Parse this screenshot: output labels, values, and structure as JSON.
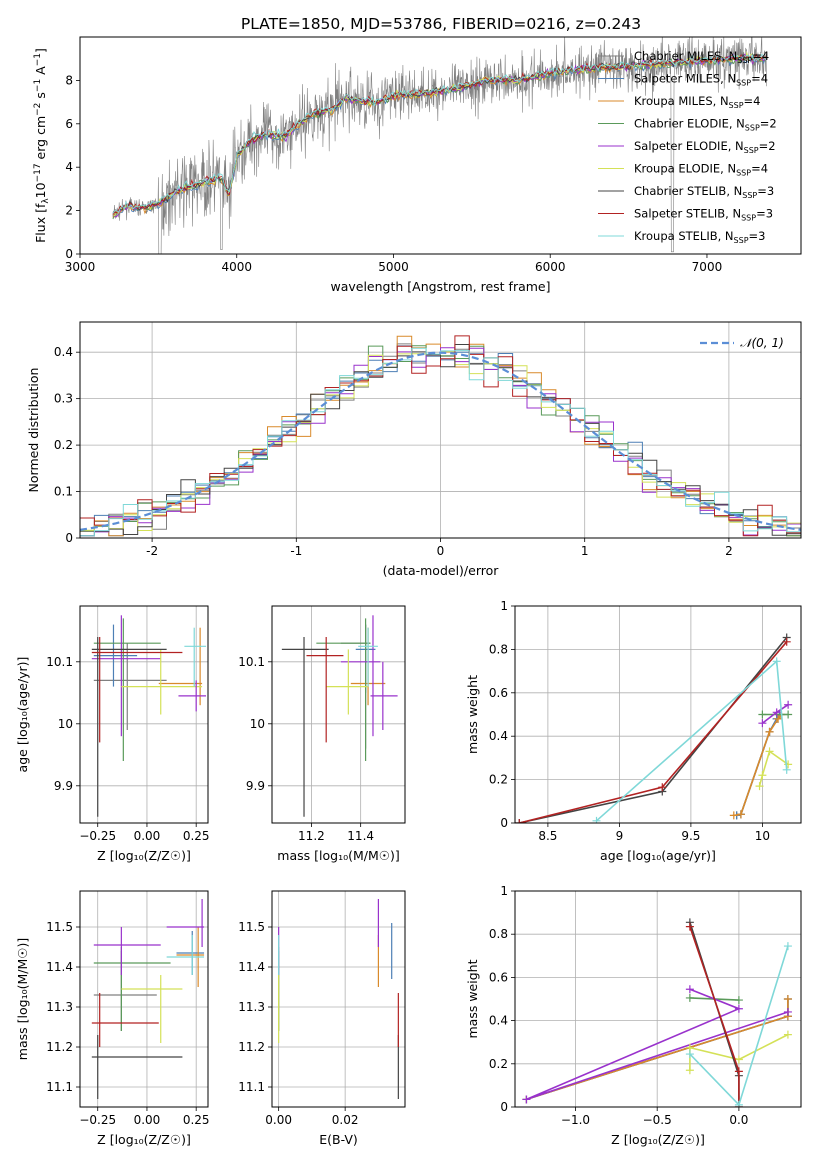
{
  "figure_title": "PLATE=1850, MJD=53786, FIBERID=0216, z=0.243",
  "colors": {
    "Chabrier MILES": "#808080",
    "Salpeter MILES": "#4d7fb5",
    "Kroupa MILES": "#d98a2b",
    "Chabrier ELODIE": "#5a9a5a",
    "Salpeter ELODIE": "#9932cc",
    "Kroupa ELODIE": "#d4e157",
    "Chabrier STELIB": "#444444",
    "Salpeter STELIB": "#b22222",
    "Kroupa STELIB": "#7fd8d8",
    "normal": "#5b8ed6",
    "grid": "#b0b0b0"
  },
  "chart_data": [
    {
      "id": "spectrum",
      "type": "line",
      "title": "PLATE=1850, MJD=53786, FIBERID=0216, z=0.243",
      "xlabel": "wavelength [Angstrom, rest frame]",
      "ylabel": "Flux [f$_\\lambda$10$^{-17}$ erg cm$^{-2}$ s$^{-1}$ A$^{-1}$]",
      "ylabel_parts": [
        "Flux [f",
        "λ",
        "10",
        "−17",
        " erg cm",
        "−2",
        " s",
        "−1",
        " A",
        "−1",
        "]"
      ],
      "xlim": [
        3000,
        7600
      ],
      "ylim": [
        0,
        10
      ],
      "xticks": [
        3000,
        4000,
        5000,
        6000,
        7000
      ],
      "yticks": [
        0,
        2,
        4,
        6,
        8
      ],
      "grid": false,
      "legend_position": "upper-right",
      "legend": [
        {
          "label": "Chabrier MILES, N",
          "sub": "SSP",
          "suffix": "=4"
        },
        {
          "label": "Salpeter MILES, N",
          "sub": "SSP",
          "suffix": "=4"
        },
        {
          "label": "Kroupa MILES, N",
          "sub": "SSP",
          "suffix": "=4"
        },
        {
          "label": "Chabrier ELODIE, N",
          "sub": "SSP",
          "suffix": "=2"
        },
        {
          "label": "Salpeter ELODIE, N",
          "sub": "SSP",
          "suffix": "=2"
        },
        {
          "label": "Kroupa ELODIE, N",
          "sub": "SSP",
          "suffix": "=4"
        },
        {
          "label": "Chabrier STELIB, N",
          "sub": "SSP",
          "suffix": "=3"
        },
        {
          "label": "Salpeter STELIB, N",
          "sub": "SSP",
          "suffix": "=3"
        },
        {
          "label": "Kroupa STELIB, N",
          "sub": "SSP",
          "suffix": "=3"
        }
      ],
      "data_coverage": [
        3210,
        7380
      ],
      "model_envelope": {
        "x": [
          3210,
          3300,
          3400,
          3500,
          3600,
          3700,
          3800,
          3900,
          3950,
          4000,
          4100,
          4200,
          4300,
          4400,
          4500,
          4600,
          4700,
          4800,
          4900,
          5000,
          5200,
          5400,
          5600,
          5800,
          6000,
          6200,
          6400,
          6600,
          6800,
          7000,
          7200,
          7380
        ],
        "y": [
          1.8,
          2.2,
          2.1,
          2.3,
          2.8,
          3.1,
          3.3,
          3.5,
          2.7,
          4.5,
          5.3,
          5.5,
          5.4,
          6.0,
          6.5,
          6.6,
          7.2,
          7.0,
          7.0,
          7.3,
          7.4,
          7.6,
          8.0,
          8.0,
          8.3,
          8.5,
          8.6,
          8.7,
          8.8,
          8.9,
          9.0,
          9.0
        ]
      }
    },
    {
      "id": "residuals",
      "type": "histogram",
      "xlabel": "(data-model)/error",
      "ylabel": "Normed distribution",
      "xlim": [
        -2.5,
        2.5
      ],
      "ylim": [
        0,
        0.465
      ],
      "xticks": [
        -2,
        -1,
        0,
        1,
        2
      ],
      "yticks": [
        0.0,
        0.1,
        0.2,
        0.3,
        0.4
      ],
      "grid": true,
      "legend_position": "upper-right",
      "legend": [
        {
          "label": "𝒩(0, 1)"
        }
      ],
      "bin_width": 0.1,
      "reference": "standard normal, dashed"
    },
    {
      "id": "Z-age",
      "type": "scatter",
      "xlabel": "Z [log₁₀(Z/Z☉)]",
      "ylabel": "age  [log₁₀(age/yr)]",
      "xlim": [
        -0.34,
        0.31
      ],
      "ylim": [
        9.84,
        10.19
      ],
      "xticks": [
        -0.25,
        0.0,
        0.25
      ],
      "xticklabels": [
        "−0.25",
        "0.00",
        "0.25"
      ],
      "yticks": [
        9.9,
        10.0,
        10.1
      ],
      "grid": true,
      "errorbars": [
        {
          "series": "Chabrier MILES",
          "x": -0.1,
          "xlo": -0.27,
          "xhi": 0.1,
          "y": 10.07,
          "ylo": 9.99,
          "yhi": 10.13
        },
        {
          "series": "Salpeter MILES",
          "x": -0.17,
          "xlo": -0.27,
          "xhi": -0.05,
          "y": 10.11,
          "ylo": 10.06,
          "yhi": 10.16
        },
        {
          "series": "Kroupa MILES",
          "x": 0.27,
          "xlo": 0.06,
          "xhi": 0.28,
          "y": 10.065,
          "ylo": 10.03,
          "yhi": 10.155
        },
        {
          "series": "Chabrier ELODIE",
          "x": -0.12,
          "xlo": -0.27,
          "xhi": 0.07,
          "y": 10.13,
          "ylo": 9.94,
          "yhi": 10.17
        },
        {
          "series": "Salpeter ELODIE",
          "x": -0.13,
          "xlo": -0.28,
          "xhi": 0.07,
          "y": 10.105,
          "ylo": 9.98,
          "yhi": 10.175
        },
        {
          "series": "Kroupa ELODIE",
          "x": 0.07,
          "xlo": -0.13,
          "xhi": 0.28,
          "y": 10.06,
          "ylo": 10.015,
          "yhi": 10.12
        },
        {
          "series": "Chabrier STELIB",
          "x": -0.25,
          "xlo": -0.28,
          "xhi": 0.1,
          "y": 10.12,
          "ylo": 9.85,
          "yhi": 10.14
        },
        {
          "series": "Salpeter STELIB",
          "x": -0.24,
          "xlo": -0.28,
          "xhi": 0.18,
          "y": 10.115,
          "ylo": 9.97,
          "yhi": 10.14
        },
        {
          "series": "Kroupa STELIB",
          "x": 0.24,
          "xlo": 0.19,
          "xhi": 0.3,
          "y": 10.125,
          "ylo": 10.06,
          "yhi": 10.155
        },
        {
          "series": "Salpeter ELODIE",
          "x": 0.25,
          "xlo": 0.16,
          "xhi": 0.3,
          "y": 10.045,
          "ylo": 10.02,
          "yhi": 10.07
        }
      ]
    },
    {
      "id": "mass-age",
      "type": "scatter",
      "xlabel": "mass [log₁₀(M/M☉)]",
      "xlim": [
        11.04,
        11.58
      ],
      "ylim": [
        9.84,
        10.19
      ],
      "xticks": [
        11.2,
        11.4
      ],
      "yticks": [
        9.9,
        10.0,
        10.1
      ],
      "grid": true,
      "errorbars": [
        {
          "series": "Chabrier MILES",
          "x": 11.42,
          "xlo": 11.32,
          "xhi": 11.44,
          "y": 10.13,
          "ylo": 9.96,
          "yhi": 10.16
        },
        {
          "series": "Salpeter MILES",
          "x": 11.42,
          "xlo": 11.38,
          "xhi": 11.46,
          "y": 10.12,
          "ylo": 10.05,
          "yhi": 10.16
        },
        {
          "series": "Kroupa MILES",
          "x": 11.43,
          "xlo": 11.36,
          "xhi": 11.5,
          "y": 10.065,
          "ylo": 10.03,
          "yhi": 10.155
        },
        {
          "series": "Chabrier ELODIE",
          "x": 11.42,
          "xlo": 11.22,
          "xhi": 11.44,
          "y": 10.13,
          "ylo": 9.94,
          "yhi": 10.17
        },
        {
          "series": "Salpeter ELODIE",
          "x": 11.45,
          "xlo": 11.32,
          "xhi": 11.48,
          "y": 10.1,
          "ylo": 9.98,
          "yhi": 10.175
        },
        {
          "series": "Kroupa ELODIE",
          "x": 11.35,
          "xlo": 11.26,
          "xhi": 11.43,
          "y": 10.06,
          "ylo": 10.015,
          "yhi": 10.12
        },
        {
          "series": "Chabrier STELIB",
          "x": 11.17,
          "xlo": 11.08,
          "xhi": 11.27,
          "y": 10.12,
          "ylo": 9.85,
          "yhi": 10.14
        },
        {
          "series": "Salpeter STELIB",
          "x": 11.26,
          "xlo": 11.18,
          "xhi": 11.33,
          "y": 10.11,
          "ylo": 9.97,
          "yhi": 10.14
        },
        {
          "series": "Kroupa STELIB",
          "x": 11.43,
          "xlo": 11.39,
          "xhi": 11.47,
          "y": 10.125,
          "ylo": 10.06,
          "yhi": 10.155
        },
        {
          "series": "Salpeter ELODIE",
          "x": 11.49,
          "xlo": 11.44,
          "xhi": 11.55,
          "y": 10.045,
          "ylo": 9.99,
          "yhi": 10.1
        }
      ]
    },
    {
      "id": "age-weight",
      "type": "line",
      "xlabel": "age  [log₁₀(age/yr)]",
      "ylabel": "mass weight",
      "xlim": [
        8.27,
        10.27
      ],
      "ylim": [
        0,
        1
      ],
      "xticks": [
        8.5,
        9.0,
        9.5,
        10.0
      ],
      "yticks": [
        0.0,
        0.2,
        0.4,
        0.6,
        0.8,
        1.0
      ],
      "grid": true,
      "series": [
        {
          "name": "Chabrier MILES",
          "x": [
            9.82,
            9.85,
            10.05,
            10.1,
            10.12
          ],
          "y": [
            0.035,
            0.04,
            0.42,
            0.48,
            0.5
          ]
        },
        {
          "name": "Salpeter MILES",
          "x": [
            9.82,
            9.85,
            10.05,
            10.1,
            10.12
          ],
          "y": [
            0.035,
            0.04,
            0.42,
            0.48,
            0.5
          ]
        },
        {
          "name": "Kroupa MILES",
          "x": [
            9.8,
            9.85,
            10.05,
            10.11,
            10.13
          ],
          "y": [
            0.035,
            0.04,
            0.42,
            0.48,
            0.5
          ]
        },
        {
          "name": "Chabrier ELODIE",
          "x": [
            10.0,
            10.18
          ],
          "y": [
            0.5,
            0.5
          ]
        },
        {
          "name": "Salpeter ELODIE",
          "x": [
            10.0,
            10.1,
            10.18
          ],
          "y": [
            0.46,
            0.51,
            0.545
          ]
        },
        {
          "name": "Kroupa ELODIE",
          "x": [
            9.98,
            10.0,
            10.05,
            10.18
          ],
          "y": [
            0.17,
            0.22,
            0.33,
            0.27
          ]
        },
        {
          "name": "Chabrier STELIB",
          "x": [
            8.3,
            9.3,
            10.17
          ],
          "y": [
            0.0,
            0.145,
            0.855
          ]
        },
        {
          "name": "Salpeter STELIB",
          "x": [
            8.3,
            9.3,
            10.17
          ],
          "y": [
            0.0,
            0.165,
            0.835
          ]
        },
        {
          "name": "Kroupa STELIB",
          "x": [
            8.84,
            10.1,
            10.17
          ],
          "y": [
            0.01,
            0.745,
            0.245
          ]
        }
      ]
    },
    {
      "id": "Z-mass",
      "type": "scatter",
      "xlabel": "Z [log₁₀(Z/Z☉)]",
      "ylabel": "mass [log₁₀(M/M☉)]",
      "xlim": [
        -0.34,
        0.31
      ],
      "ylim": [
        11.05,
        11.59
      ],
      "xticks": [
        -0.25,
        0.0,
        0.25
      ],
      "xticklabels": [
        "−0.25",
        "0.00",
        "0.25"
      ],
      "yticks": [
        11.1,
        11.2,
        11.3,
        11.4,
        11.5
      ],
      "grid": true,
      "errorbars": [
        {
          "series": "Chabrier MILES",
          "x": -0.13,
          "xlo": -0.27,
          "xhi": 0.05,
          "y": 11.33,
          "ylo": 11.24,
          "yhi": 11.44
        },
        {
          "series": "Salpeter MILES",
          "x": 0.23,
          "xlo": 0.15,
          "xhi": 0.29,
          "y": 11.435,
          "ylo": 11.38,
          "yhi": 11.49
        },
        {
          "series": "Kroupa MILES",
          "x": 0.26,
          "xlo": 0.15,
          "xhi": 0.29,
          "y": 11.43,
          "ylo": 11.35,
          "yhi": 11.5
        },
        {
          "series": "Chabrier ELODIE",
          "x": -0.13,
          "xlo": -0.27,
          "xhi": 0.12,
          "y": 11.41,
          "ylo": 11.24,
          "yhi": 11.45
        },
        {
          "series": "Salpeter ELODIE",
          "x": -0.13,
          "xlo": -0.27,
          "xhi": 0.07,
          "y": 11.455,
          "ylo": 11.38,
          "yhi": 11.5
        },
        {
          "series": "Kroupa ELODIE",
          "x": 0.07,
          "xlo": -0.13,
          "xhi": 0.18,
          "y": 11.345,
          "ylo": 11.21,
          "yhi": 11.38
        },
        {
          "series": "Chabrier STELIB",
          "x": -0.25,
          "xlo": -0.28,
          "xhi": 0.18,
          "y": 11.175,
          "ylo": 11.07,
          "yhi": 11.23
        },
        {
          "series": "Salpeter STELIB",
          "x": -0.24,
          "xlo": -0.28,
          "xhi": 0.06,
          "y": 11.26,
          "ylo": 11.2,
          "yhi": 11.335
        },
        {
          "series": "Kroupa STELIB",
          "x": 0.23,
          "xlo": 0.1,
          "xhi": 0.29,
          "y": 11.425,
          "ylo": 11.38,
          "yhi": 11.48
        },
        {
          "series": "Salpeter ELODIE",
          "x": 0.28,
          "xlo": 0.1,
          "xhi": 0.29,
          "y": 11.5,
          "ylo": 11.45,
          "yhi": 11.57
        }
      ]
    },
    {
      "id": "ebv-mass",
      "type": "scatter",
      "xlabel": "E(B-V)",
      "xlim": [
        -0.002,
        0.038
      ],
      "ylim": [
        11.05,
        11.59
      ],
      "xticks": [
        0.0,
        0.02
      ],
      "xticklabels": [
        "0.00",
        "0.02"
      ],
      "yticks": [
        11.1,
        11.2,
        11.3,
        11.4,
        11.5
      ],
      "grid": true,
      "errorbars": [
        {
          "series": "Chabrier MILES",
          "x": 0.0,
          "y": 11.33,
          "ylo": 11.24,
          "yhi": 11.44
        },
        {
          "series": "Salpeter MILES",
          "x": 0.034,
          "y": 11.435,
          "ylo": 11.37,
          "yhi": 11.51
        },
        {
          "series": "Kroupa MILES",
          "x": 0.03,
          "y": 11.43,
          "ylo": 11.35,
          "yhi": 11.48
        },
        {
          "series": "Chabrier ELODIE",
          "x": 0.0,
          "y": 11.41,
          "ylo": 11.24,
          "yhi": 11.45
        },
        {
          "series": "Salpeter ELODIE",
          "x": 0.0,
          "y": 11.455,
          "ylo": 11.38,
          "yhi": 11.5
        },
        {
          "series": "Kroupa ELODIE",
          "x": 0.0,
          "y": 11.345,
          "ylo": 11.21,
          "yhi": 11.38
        },
        {
          "series": "Chabrier STELIB",
          "x": 0.036,
          "y": 11.175,
          "ylo": 11.07,
          "yhi": 11.23
        },
        {
          "series": "Salpeter STELIB",
          "x": 0.036,
          "y": 11.26,
          "ylo": 11.2,
          "yhi": 11.335
        },
        {
          "series": "Kroupa STELIB",
          "x": 0.0,
          "y": 11.425,
          "ylo": 11.38,
          "yhi": 11.48
        },
        {
          "series": "Salpeter ELODIE",
          "x": 0.03,
          "y": 11.5,
          "ylo": 11.45,
          "yhi": 11.57
        }
      ]
    },
    {
      "id": "Z-weight",
      "type": "line",
      "xlabel": "Z [log₁₀(Z/Z☉)]",
      "ylabel": "mass weight",
      "xlim": [
        -1.37,
        0.38
      ],
      "ylim": [
        0,
        1
      ],
      "xticks": [
        -1.0,
        -0.5,
        0.0
      ],
      "xticklabels": [
        "−1.0",
        "−0.5",
        "0.0"
      ],
      "yticks": [
        0.0,
        0.2,
        0.4,
        0.6,
        0.8,
        1.0
      ],
      "grid": true,
      "series": [
        {
          "name": "Chabrier MILES",
          "x": [
            -1.3,
            0.3,
            0.3
          ],
          "y": [
            0.035,
            0.42,
            0.5
          ]
        },
        {
          "name": "Salpeter MILES",
          "x": [
            -1.3,
            0.3,
            0.3
          ],
          "y": [
            0.035,
            0.42,
            0.5
          ]
        },
        {
          "name": "Kroupa MILES",
          "x": [
            -1.3,
            0.3,
            0.3
          ],
          "y": [
            0.035,
            0.42,
            0.5
          ]
        },
        {
          "name": "Chabrier ELODIE",
          "x": [
            -0.3,
            0.0
          ],
          "y": [
            0.505,
            0.495
          ]
        },
        {
          "name": "Salpeter ELODIE",
          "x": [
            -0.3,
            0.0,
            -1.3,
            0.3
          ],
          "y": [
            0.545,
            0.455,
            0.035,
            0.44
          ]
        },
        {
          "name": "Kroupa ELODIE",
          "x": [
            -0.3,
            -0.3,
            0.0,
            0.3
          ],
          "y": [
            0.17,
            0.275,
            0.22,
            0.335
          ]
        },
        {
          "name": "Chabrier STELIB",
          "x": [
            -0.3,
            0.0,
            0.0
          ],
          "y": [
            0.855,
            0.145,
            0.0
          ]
        },
        {
          "name": "Salpeter STELIB",
          "x": [
            -0.3,
            0.0,
            0.0
          ],
          "y": [
            0.835,
            0.165,
            0.0
          ]
        },
        {
          "name": "Kroupa STELIB",
          "x": [
            -0.3,
            0.0,
            0.3
          ],
          "y": [
            0.245,
            0.01,
            0.745
          ]
        }
      ]
    }
  ]
}
